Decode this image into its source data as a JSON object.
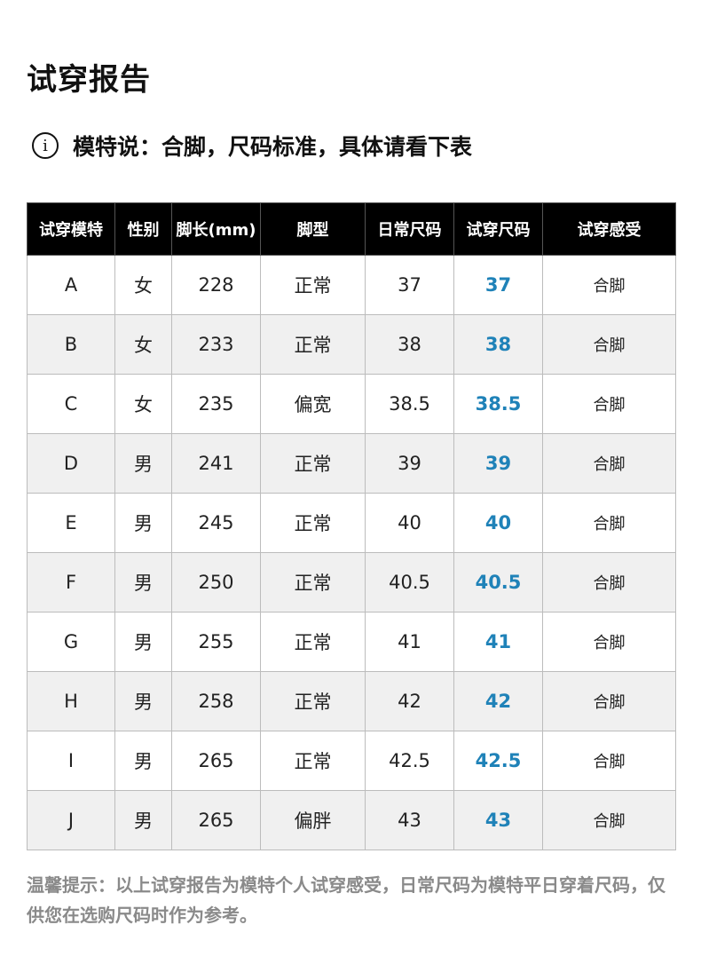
{
  "title": "试穿报告",
  "model_note": {
    "icon": "info-icon",
    "text": "模特说：合脚，尺码标准，具体请看下表"
  },
  "colors": {
    "trial_size": "#1f82b8",
    "stripe": "#f0f0f0"
  },
  "table": {
    "headers": [
      "试穿模特",
      "性别",
      "脚长(mm)",
      "脚型",
      "日常尺码",
      "试穿尺码",
      "试穿感受"
    ],
    "rows": [
      [
        "A",
        "女",
        "228",
        "正常",
        "37",
        "37",
        "合脚"
      ],
      [
        "B",
        "女",
        "233",
        "正常",
        "38",
        "38",
        "合脚"
      ],
      [
        "C",
        "女",
        "235",
        "偏宽",
        "38.5",
        "38.5",
        "合脚"
      ],
      [
        "D",
        "男",
        "241",
        "正常",
        "39",
        "39",
        "合脚"
      ],
      [
        "E",
        "男",
        "245",
        "正常",
        "40",
        "40",
        "合脚"
      ],
      [
        "F",
        "男",
        "250",
        "正常",
        "40.5",
        "40.5",
        "合脚"
      ],
      [
        "G",
        "男",
        "255",
        "正常",
        "41",
        "41",
        "合脚"
      ],
      [
        "H",
        "男",
        "258",
        "正常",
        "42",
        "42",
        "合脚"
      ],
      [
        "I",
        "男",
        "265",
        "正常",
        "42.5",
        "42.5",
        "合脚"
      ],
      [
        "J",
        "男",
        "265",
        "偏胖",
        "43",
        "43",
        "合脚"
      ]
    ]
  },
  "footer": "温馨提示：以上试穿报告为模特个人试穿感受，日常尺码为模特平日穿着尺码，仅供您在选购尺码时作为参考。"
}
